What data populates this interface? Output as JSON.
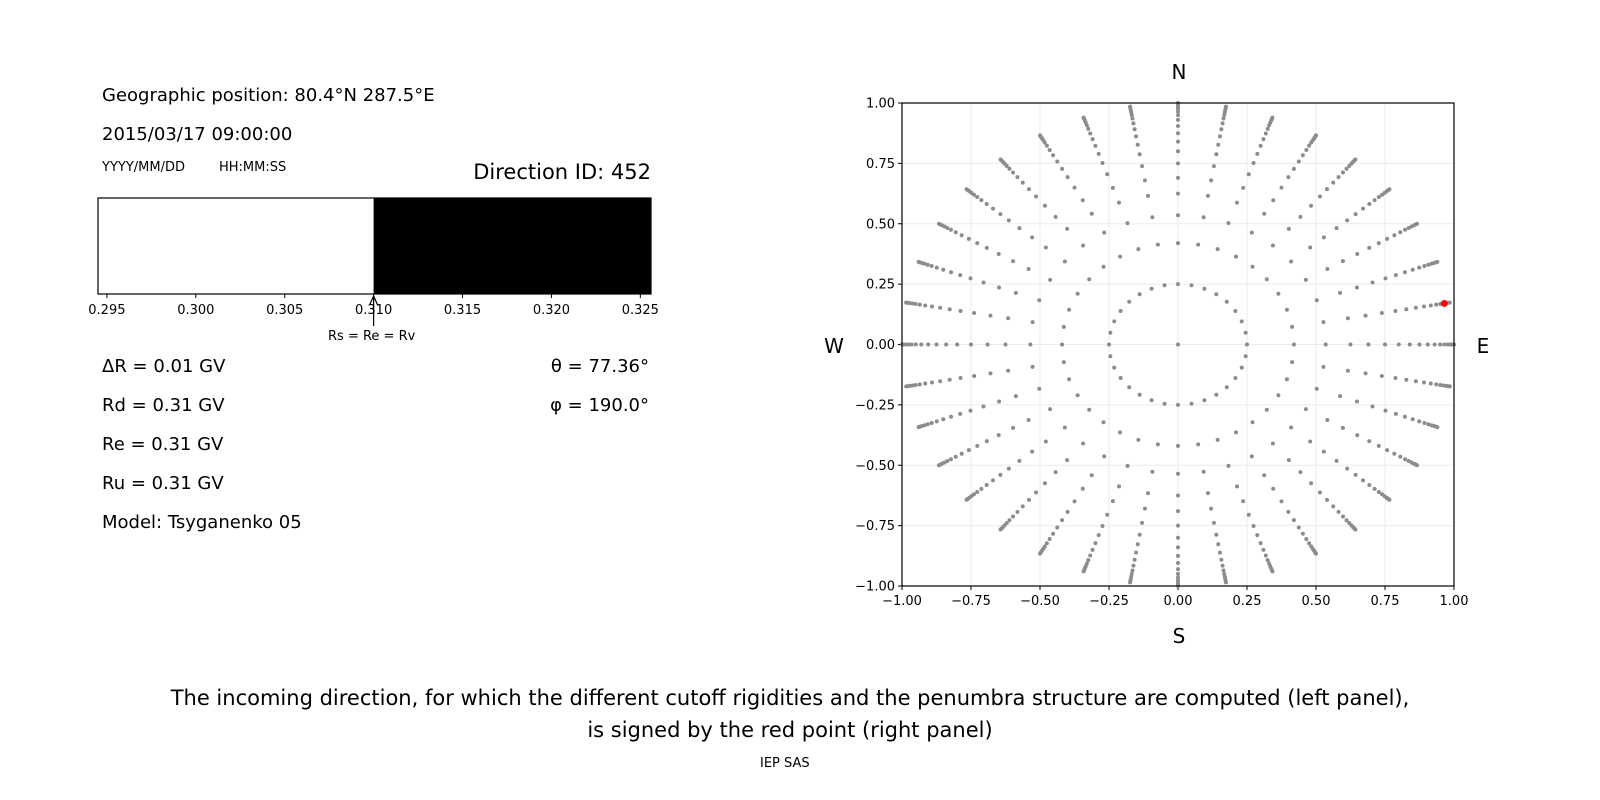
{
  "left_panel": {
    "geo_position": "Geographic position: 80.4°N 287.5°E",
    "datetime": "2015/03/17 09:00:00",
    "date_format": "YYYY/MM/DD",
    "time_format": "HH:MM:SS",
    "direction_id": "Direction ID: 452",
    "marker_label": "Rs = Re = Rv",
    "delta_r": "ΔR = 0.01 GV",
    "rd": "Rd = 0.31 GV",
    "re": "Re = 0.31 GV",
    "ru": "Ru = 0.31 GV",
    "model": "Model: Tsyganenko 05",
    "theta": "θ = 77.36°",
    "phi": "φ = 190.0°"
  },
  "caption_line1": "The incoming direction, for which the different cutoff rigidities and the penumbra structure are computed (left panel),",
  "caption_line2": "is signed by the red point (right panel)",
  "footer": "IEP SAS",
  "chart_data": [
    {
      "type": "bar",
      "description_kind": "penumbra strip",
      "xlim": [
        0.2945,
        0.3256
      ],
      "xticks": [
        "0.295",
        "0.300",
        "0.305",
        "0.310",
        "0.315",
        "0.320",
        "0.325"
      ],
      "segments": [
        {
          "from": 0.2945,
          "to": 0.31,
          "color": "#ffffff"
        },
        {
          "from": 0.31,
          "to": 0.3256,
          "color": "#000000"
        }
      ],
      "marker_at": 0.31
    },
    {
      "type": "scatter",
      "xlim": [
        -1,
        1
      ],
      "ylim": [
        -1,
        1
      ],
      "xticks": [
        "−1.00",
        "−0.75",
        "−0.50",
        "−0.25",
        "0.00",
        "0.25",
        "0.50",
        "0.75",
        "1.00"
      ],
      "yticks": [
        "1.00",
        "0.75",
        "0.50",
        "0.25",
        "0.00",
        "−0.25",
        "−0.50",
        "−0.75",
        "−1.00"
      ],
      "grid": true,
      "compass": {
        "n": "N",
        "s": "S",
        "e": "E",
        "w": "W"
      },
      "azimuth_step_deg": 10,
      "spoke_radii": [
        0.42,
        0.535,
        0.625,
        0.69,
        0.75,
        0.8,
        0.84,
        0.875,
        0.905,
        0.93,
        0.95,
        0.965,
        0.977,
        0.987,
        0.995,
        1.0
      ],
      "inner_ring_radius": 0.25,
      "inner_ring_points": 32,
      "center_point": [
        0,
        0
      ],
      "point_color": "#8c8c8c",
      "highlight": {
        "x": 0.965,
        "y": 0.17,
        "color": "#ff0000"
      }
    }
  ]
}
